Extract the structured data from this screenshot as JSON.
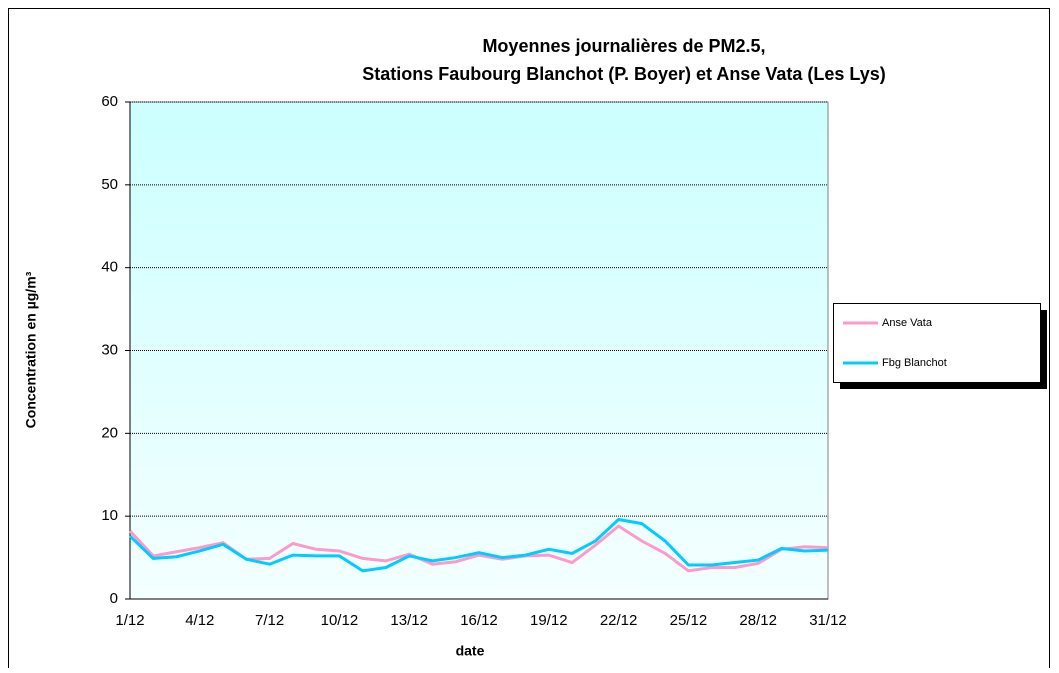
{
  "chart_data": {
    "type": "line",
    "title": [
      "Moyennes journalières de PM2.5,",
      "Stations Faubourg Blanchot (P. Boyer) et Anse Vata (Les Lys)"
    ],
    "xlabel": "date",
    "ylabel": "Concentration en µg/m³",
    "categories": [
      "1/12",
      null,
      null,
      "4/12",
      null,
      null,
      "7/12",
      null,
      null,
      "10/12",
      null,
      null,
      "13/12",
      null,
      null,
      "16/12",
      null,
      null,
      "19/12",
      null,
      null,
      "22/12",
      null,
      null,
      "25/12",
      null,
      null,
      "28/12",
      null,
      null,
      "31/12"
    ],
    "series": [
      {
        "name": "Anse Vata",
        "color": "#ff99cc",
        "values": [
          8.2,
          5.2,
          5.7,
          6.2,
          6.8,
          4.8,
          4.9,
          6.7,
          6.0,
          5.8,
          4.9,
          4.6,
          5.4,
          4.2,
          4.5,
          5.3,
          4.8,
          5.2,
          5.3,
          4.4,
          6.5,
          8.8,
          7.0,
          5.5,
          3.4,
          3.8,
          3.8,
          4.3,
          6.0,
          6.3,
          6.2
        ]
      },
      {
        "name": "Fbg Blanchot",
        "color": "#00ccff",
        "values": [
          7.6,
          4.9,
          5.1,
          5.8,
          6.6,
          4.8,
          4.2,
          5.3,
          5.2,
          5.2,
          3.4,
          3.8,
          5.2,
          4.6,
          5.0,
          5.6,
          5.0,
          5.3,
          6.0,
          5.5,
          7.0,
          9.6,
          9.1,
          7.0,
          4.1,
          4.1,
          4.4,
          4.7,
          6.1,
          5.8,
          5.9
        ]
      }
    ],
    "ylim": [
      0,
      60
    ],
    "yticks": [
      0,
      10,
      20,
      30,
      40,
      50,
      60
    ],
    "grid": true,
    "legend": "right"
  }
}
